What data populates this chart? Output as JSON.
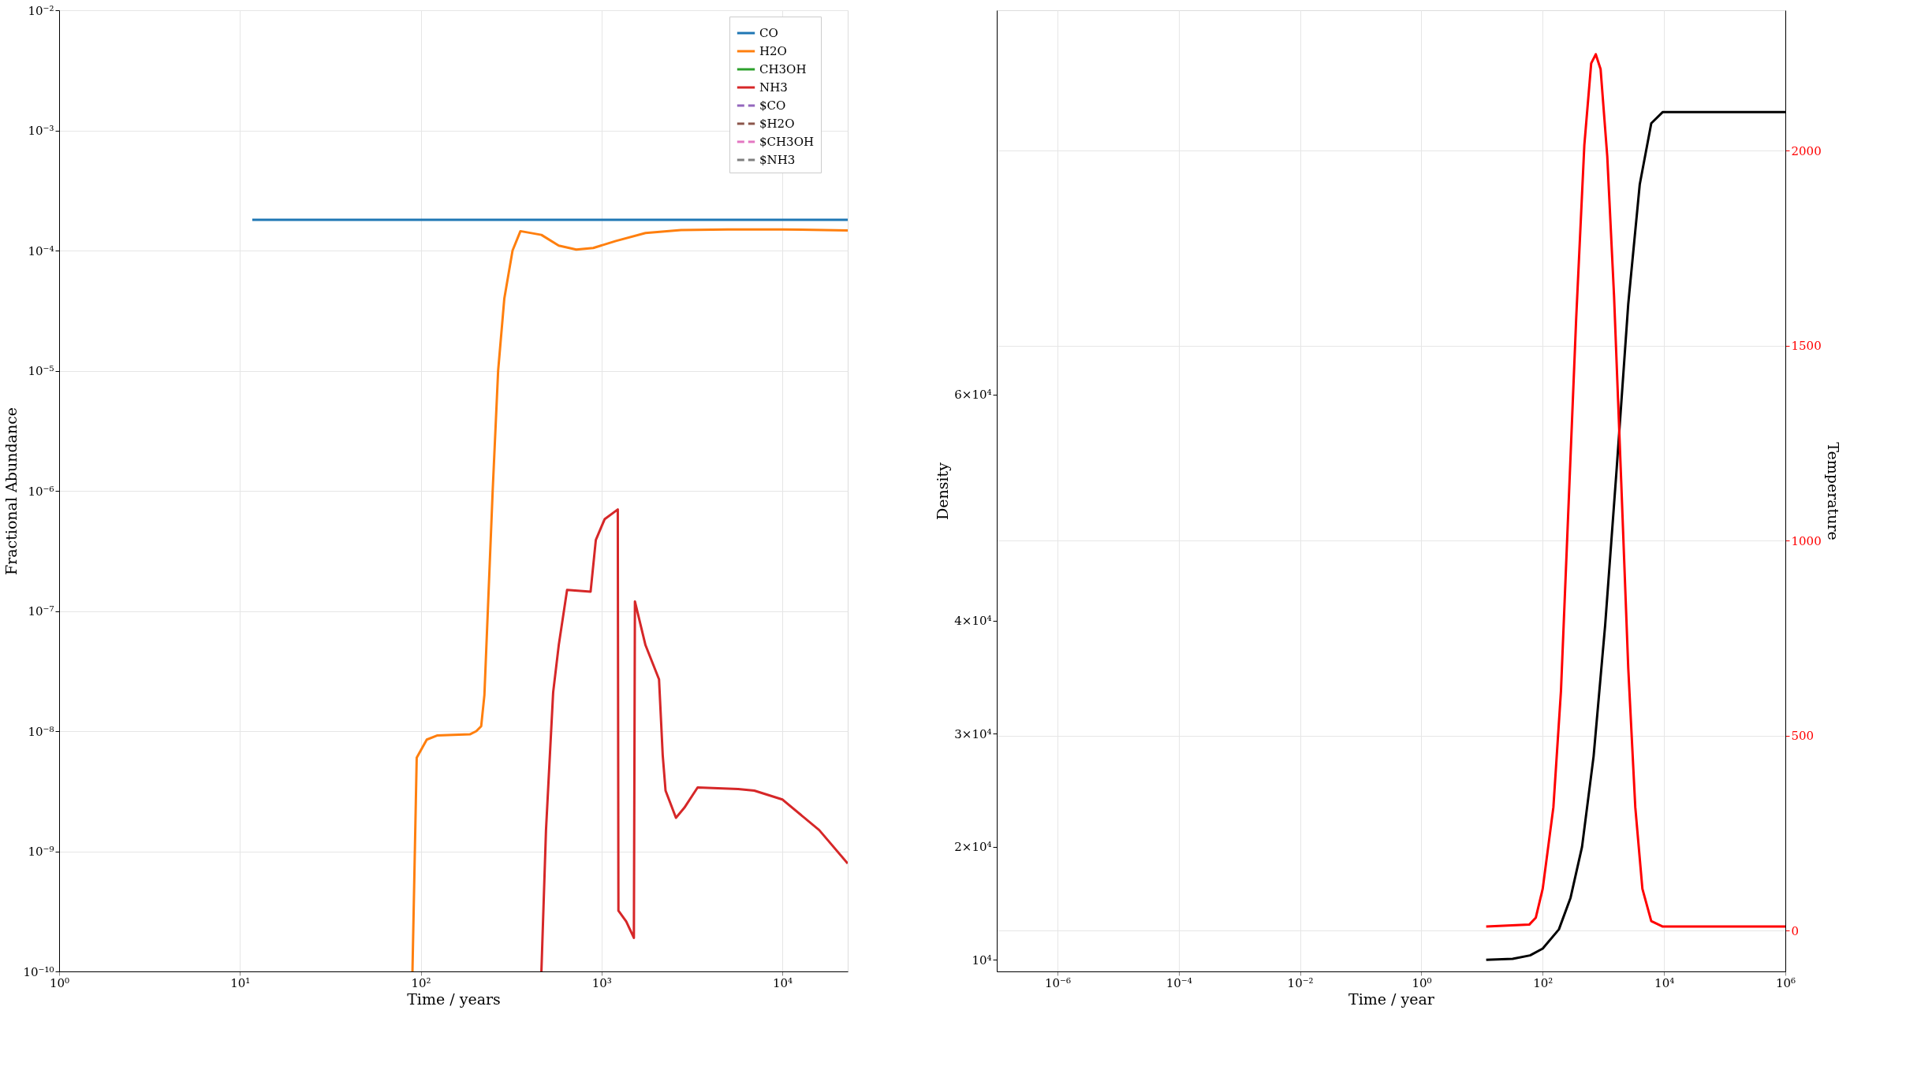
{
  "chart_data": [
    {
      "type": "line",
      "xlabel": "Time / years",
      "ylabel": "Fractional Abundance",
      "log": "xy",
      "grid": true,
      "legend": "top right",
      "xlim": [
        1,
        23000
      ],
      "xticks": [
        {
          "value": 1,
          "label": "10⁰"
        },
        {
          "value": 10,
          "label": "10¹"
        },
        {
          "value": 100,
          "label": "10²"
        },
        {
          "value": 1000,
          "label": "10³"
        },
        {
          "value": 10000,
          "label": "10⁴"
        }
      ],
      "ylim": [
        1e-10,
        0.01
      ],
      "yticks": [
        {
          "value": 1e-10,
          "label": "10⁻¹⁰"
        },
        {
          "value": 1e-09,
          "label": "10⁻⁹"
        },
        {
          "value": 1e-08,
          "label": "10⁻⁸"
        },
        {
          "value": 1e-07,
          "label": "10⁻⁷"
        },
        {
          "value": 1e-06,
          "label": "10⁻⁶"
        },
        {
          "value": 1e-05,
          "label": "10⁻⁵"
        },
        {
          "value": 0.0001,
          "label": "10⁻⁴"
        },
        {
          "value": 0.001,
          "label": "10⁻³"
        },
        {
          "value": 0.01,
          "label": "10⁻²"
        }
      ],
      "series": [
        {
          "name": "CO",
          "color": "#1f77b4",
          "line_style": "solid",
          "x": [
            11.7,
            23000
          ],
          "values": [
            0.00018,
            0.00018
          ]
        },
        {
          "name": "H2O",
          "color": "#ff7f0e",
          "line_style": "solid",
          "x": [
            90,
            95,
            108,
            123,
            187,
            203,
            216,
            225,
            235,
            250,
            268,
            290,
            322,
            356,
            465,
            580,
            725,
            900,
            1200,
            1750,
            2750,
            5000,
            10000,
            23000
          ],
          "values": [
            1e-10,
            6e-09,
            8.5e-09,
            9.2e-09,
            9.4e-09,
            1e-08,
            1.1e-08,
            2e-08,
            1e-07,
            1e-06,
            1e-05,
            4e-05,
            0.0001,
            0.000145,
            0.000135,
            0.00011,
            0.000102,
            0.000105,
            0.00012,
            0.00014,
            0.000148,
            0.00015,
            0.00015,
            0.000147
          ]
        },
        {
          "name": "CH3OH",
          "color": "#2ca02c",
          "line_style": "solid"
        },
        {
          "name": "NH3",
          "color": "#d62728",
          "line_style": "solid",
          "x": [
            465,
            493,
            540,
            580,
            645,
            870,
            930,
            1040,
            1230,
            1240,
            1370,
            1510,
            1530,
            1750,
            2080,
            2180,
            2260,
            2580,
            2870,
            3400,
            5700,
            7000,
            10000,
            16000,
            23000
          ],
          "values": [
            1e-10,
            1.5e-09,
            2.1e-08,
            5.2e-08,
            1.5e-07,
            1.45e-07,
            3.9e-07,
            5.8e-07,
            7e-07,
            3.2e-10,
            2.6e-10,
            1.9e-10,
            1.2e-07,
            5.2e-08,
            2.7e-08,
            6.3e-09,
            3.2e-09,
            1.9e-09,
            2.3e-09,
            3.4e-09,
            3.3e-09,
            3.2e-09,
            2.7e-09,
            1.5e-09,
            7.9e-10
          ]
        },
        {
          "name": "$CO",
          "color": "#9467bd",
          "line_style": "dashed"
        },
        {
          "name": "$H2O",
          "color": "#8c564b",
          "line_style": "dashed"
        },
        {
          "name": "$CH3OH",
          "color": "#e377c2",
          "line_style": "dashed"
        },
        {
          "name": "$NH3",
          "color": "#7f7f7f",
          "line_style": "dashed"
        }
      ]
    },
    {
      "type": "line",
      "xlabel": "Time / year",
      "ylabel": "Density",
      "y2label": "Temperature",
      "log": "x",
      "grid": true,
      "xlim": [
        1e-07,
        1000000.0
      ],
      "xticks": [
        {
          "value": 1e-06,
          "label": "10⁻⁶"
        },
        {
          "value": 0.0001,
          "label": "10⁻⁴"
        },
        {
          "value": 0.01,
          "label": "10⁻²"
        },
        {
          "value": 1,
          "label": "10⁰"
        },
        {
          "value": 100,
          "label": "10²"
        },
        {
          "value": 10000,
          "label": "10⁴"
        },
        {
          "value": 1000000,
          "label": "10⁶"
        }
      ],
      "ylim": [
        8980,
        94000
      ],
      "yticks": [
        {
          "value": 10000,
          "label": "10⁴"
        },
        {
          "value": 20000,
          "label": "2×10⁴"
        },
        {
          "value": 30000,
          "label": "3×10⁴"
        },
        {
          "value": 40000,
          "label": "4×10⁴"
        },
        {
          "value": 60000,
          "label": "6×10⁴"
        }
      ],
      "y2lim": [
        -105,
        2360
      ],
      "y2ticks": [
        0,
        500,
        1000,
        1500,
        2000
      ],
      "series": [
        {
          "color": "#000000",
          "axis": "y",
          "x": [
            11.7,
            32,
            62,
            100,
            185,
            288,
            445,
            690,
            1070,
            1660,
            2570,
            3980,
            6160,
            9550,
            1000000
          ],
          "values": [
            10000,
            10100,
            10400,
            11000,
            12700,
            15500,
            20000,
            28000,
            39600,
            53500,
            68000,
            78600,
            84000,
            85000,
            85000
          ]
        },
        {
          "color": "#ff0000",
          "axis": "y2",
          "x": [
            11.7,
            60,
            77,
            100,
            150,
            200,
            262,
            356,
            486,
            630,
            750,
            900,
            1160,
            1500,
            1970,
            2570,
            3360,
            4400,
            6160,
            9550,
            1000000
          ],
          "values": [
            10,
            15,
            33,
            107,
            316,
            614,
            1061,
            1568,
            2015,
            2224,
            2247,
            2209,
            1985,
            1627,
            1150,
            674,
            316,
            107,
            24,
            10,
            10
          ]
        }
      ]
    }
  ]
}
